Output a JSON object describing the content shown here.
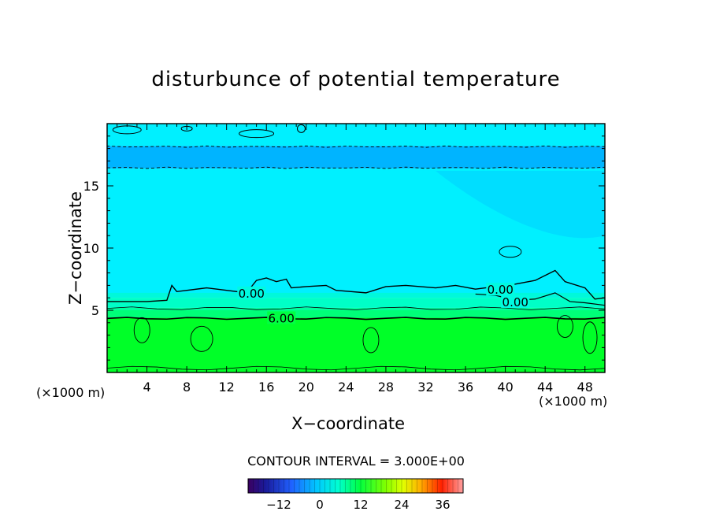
{
  "chart_data": {
    "type": "heatmap",
    "title": "disturbunce of potential temperature",
    "xlabel": "X−coordinate",
    "ylabel": "Z−coordinate",
    "x_unit": "(×1000 m)",
    "z_unit": "(×1000 m)",
    "xlim": [
      0,
      50
    ],
    "ylim": [
      0,
      20
    ],
    "x_ticks": [
      4,
      8,
      12,
      16,
      20,
      24,
      28,
      32,
      36,
      40,
      44,
      48
    ],
    "y_ticks": [
      5,
      10,
      15
    ],
    "contour_interval_text": "CONTOUR INTERVAL = 3.000E+00",
    "contour_labels": [
      {
        "text": "6.00",
        "x": 17.5,
        "z": 4.4
      },
      {
        "text": "0.00",
        "x": 14.5,
        "z": 6.4
      },
      {
        "text": "0.00",
        "x": 39.5,
        "z": 6.7
      },
      {
        "text": "0.00",
        "x": 41.0,
        "z": 5.7
      }
    ],
    "colorbar": {
      "min": -21,
      "max": 42,
      "tick_values": [
        -12,
        0,
        12,
        24,
        36
      ],
      "tick_labels": [
        "−12",
        "0",
        "12",
        "24",
        "36"
      ]
    },
    "field_bands": [
      {
        "z0": 0,
        "z1": 4.4,
        "value": 9
      },
      {
        "z0": 4.4,
        "z1": 5.2,
        "value": 6
      },
      {
        "z0": 5.2,
        "z1": 6.0,
        "value": 3
      },
      {
        "z0": 6.0,
        "z1": 16.4,
        "value": 0
      },
      {
        "z0": 16.4,
        "z1": 18.2,
        "value": -3
      },
      {
        "z0": 18.2,
        "z1": 20,
        "value": 0
      }
    ]
  }
}
